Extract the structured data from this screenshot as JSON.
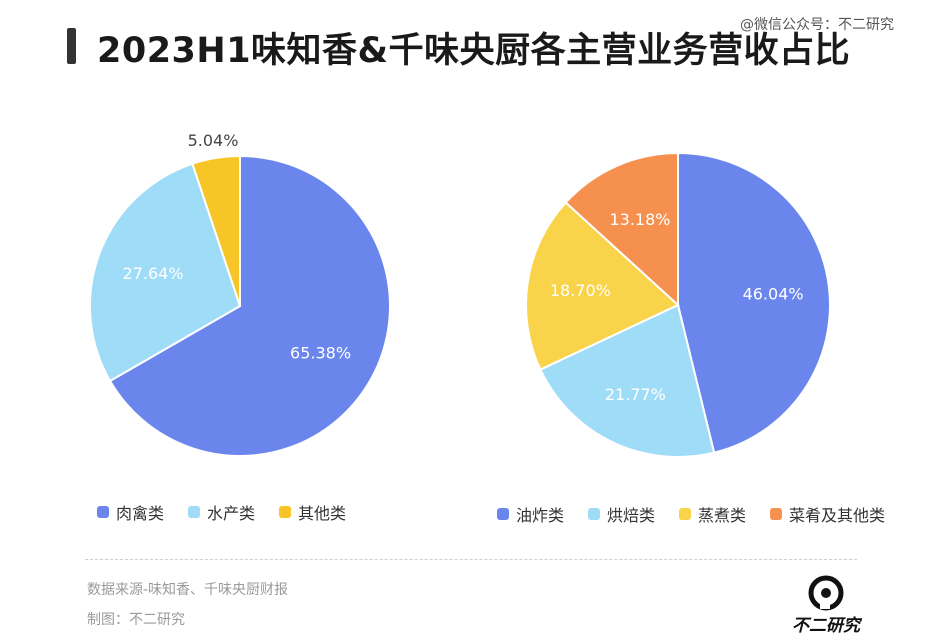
{
  "header": {
    "title": "2023H1味知香&千味央厨各主营业务营收占比",
    "weibo": "@微信公众号：不二研究"
  },
  "chart_data": [
    {
      "type": "pie",
      "title": "",
      "slices": [
        {
          "name": "肉禽类",
          "value": 65.38,
          "label": "65.38%",
          "color": "#6a86ec"
        },
        {
          "name": "水产类",
          "value": 27.64,
          "label": "27.64%",
          "color": "#9fdcf8"
        },
        {
          "name": "其他类",
          "value": 5.04,
          "label": "5.04%",
          "color": "#f7c526"
        }
      ],
      "legend": [
        "肉禽类",
        "水产类",
        "其他类"
      ],
      "legend_position": "bottom"
    },
    {
      "type": "pie",
      "title": "",
      "slices": [
        {
          "name": "油炸类",
          "value": 46.04,
          "label": "46.04%",
          "color": "#6a86ec"
        },
        {
          "name": "烘焙类",
          "value": 21.77,
          "label": "21.77%",
          "color": "#9fdcf8"
        },
        {
          "name": "蒸煮类",
          "value": 18.7,
          "label": "18.70%",
          "color": "#f9d34a"
        },
        {
          "name": "菜肴及其他类",
          "value": 13.18,
          "label": "13.18%",
          "color": "#f5904e"
        }
      ],
      "legend": [
        "油炸类",
        "烘焙类",
        "蒸煮类",
        "菜肴及其他类"
      ],
      "legend_position": "bottom"
    }
  ],
  "footer": {
    "source": "数据来源-味知香、千味央厨财报",
    "maker": "制图：不二研究",
    "brand": "不二研究"
  }
}
